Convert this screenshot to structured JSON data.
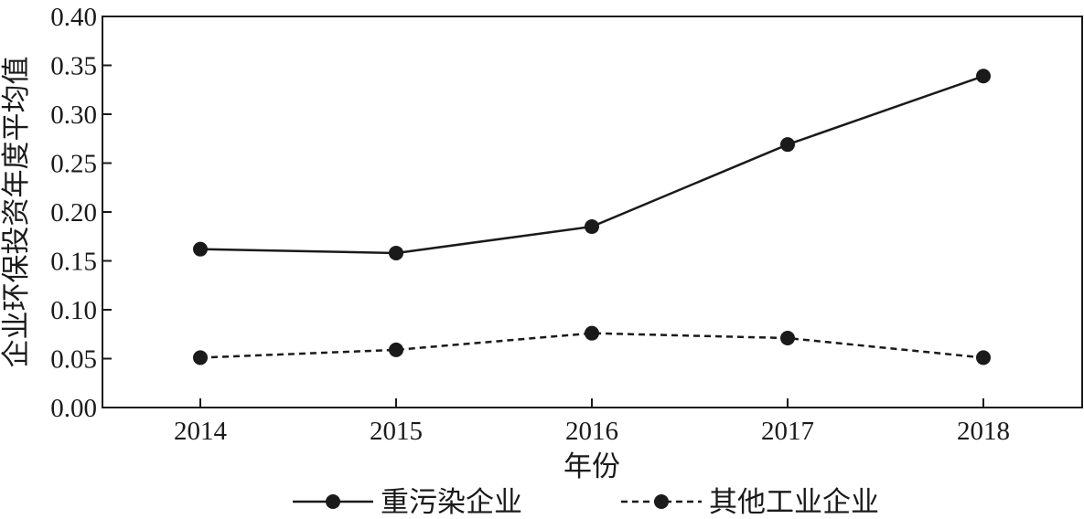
{
  "chart_data": {
    "type": "line",
    "title": "",
    "xlabel": "年份",
    "ylabel": "企业环保投资年度平均值",
    "categories": [
      "2014",
      "2015",
      "2016",
      "2017",
      "2018"
    ],
    "ylim": [
      0,
      0.4
    ],
    "yticks": [
      "0.00",
      "0.05",
      "0.10",
      "0.15",
      "0.20",
      "0.25",
      "0.30",
      "0.35",
      "0.40"
    ],
    "grid": false,
    "legend_position": "bottom",
    "series": [
      {
        "name": "重污染企业",
        "style": "solid",
        "color": "#1a1a1a",
        "values": [
          0.162,
          0.158,
          0.185,
          0.269,
          0.339
        ]
      },
      {
        "name": "其他工业企业",
        "style": "dashed",
        "color": "#1a1a1a",
        "values": [
          0.051,
          0.059,
          0.076,
          0.071,
          0.051
        ]
      }
    ]
  }
}
